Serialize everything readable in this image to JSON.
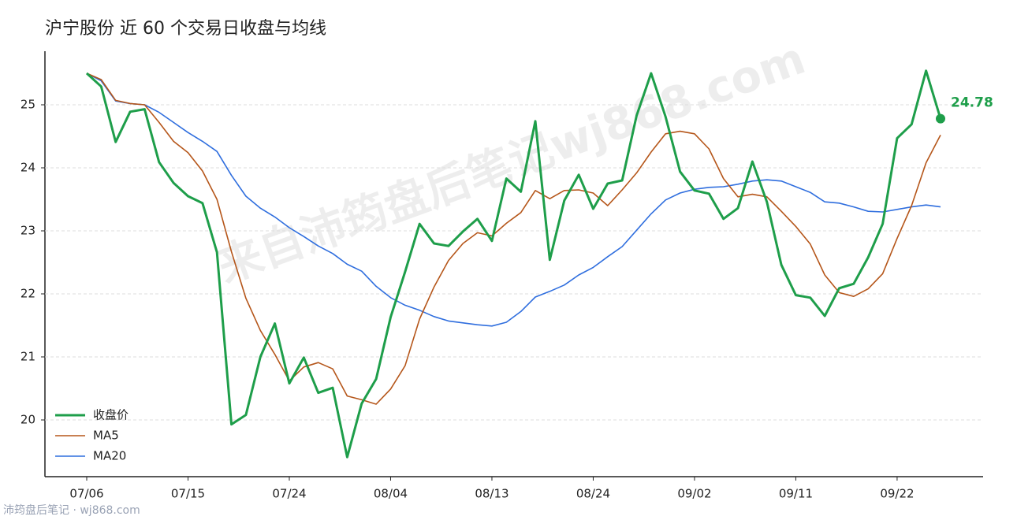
{
  "chart_data": {
    "type": "line",
    "title": "沪宁股份 近 60 个交易日收盘与均线",
    "watermark": "来自沛筠盘后笔记wj868.com",
    "footer": "沛筠盘后笔记 · wj868.com",
    "categories": [
      "07/06",
      null,
      null,
      null,
      null,
      null,
      null,
      "07/15",
      null,
      null,
      null,
      null,
      null,
      null,
      "07/24",
      null,
      null,
      null,
      null,
      null,
      null,
      "08/04",
      null,
      null,
      null,
      null,
      null,
      null,
      "08/13",
      null,
      null,
      null,
      null,
      null,
      null,
      "08/24",
      null,
      null,
      null,
      null,
      null,
      null,
      "09/02",
      null,
      null,
      null,
      null,
      null,
      null,
      "09/11",
      null,
      null,
      null,
      null,
      null,
      null,
      "09/22",
      null,
      null,
      null
    ],
    "series": [
      {
        "name": "收盘价",
        "color": "#1e9e4a",
        "width": 3,
        "values": [
          25.5,
          25.29,
          24.41,
          24.89,
          24.93,
          24.09,
          23.76,
          23.55,
          23.44,
          22.66,
          19.93,
          20.08,
          21.0,
          21.53,
          20.58,
          20.99,
          20.43,
          20.51,
          19.41,
          20.26,
          20.65,
          21.63,
          22.35,
          23.11,
          22.8,
          22.76,
          22.99,
          23.19,
          22.84,
          23.83,
          23.62,
          24.74,
          22.54,
          23.48,
          23.89,
          23.35,
          23.75,
          23.8,
          24.83,
          25.5,
          24.81,
          23.94,
          23.64,
          23.59,
          23.19,
          23.36,
          24.1,
          23.46,
          22.46,
          21.98,
          21.94,
          21.65,
          22.09,
          22.16,
          22.58,
          23.11,
          24.47,
          24.69,
          25.54,
          24.78
        ]
      },
      {
        "name": "MA5",
        "color": "#b5561a",
        "width": 1.6,
        "values": [
          25.5,
          25.4,
          25.07,
          25.02,
          25.0,
          24.72,
          24.42,
          24.24,
          23.95,
          23.5,
          22.67,
          21.93,
          21.42,
          21.04,
          20.62,
          20.84,
          20.91,
          20.81,
          20.38,
          20.32,
          20.25,
          20.49,
          20.86,
          21.6,
          22.11,
          22.53,
          22.8,
          22.97,
          22.92,
          23.12,
          23.29,
          23.64,
          23.51,
          23.64,
          23.65,
          23.6,
          23.4,
          23.65,
          23.92,
          24.25,
          24.54,
          24.58,
          24.54,
          24.3,
          23.83,
          23.54,
          23.58,
          23.54,
          23.31,
          23.07,
          22.79,
          22.3,
          22.02,
          21.96,
          22.08,
          22.32,
          22.88,
          23.4,
          24.08,
          24.52
        ]
      },
      {
        "name": "MA20",
        "color": "#2f6ede",
        "width": 1.6,
        "values": [
          25.5,
          25.38,
          25.06,
          25.02,
          25.0,
          24.88,
          24.72,
          24.56,
          24.42,
          24.26,
          23.88,
          23.55,
          23.36,
          23.22,
          23.05,
          22.91,
          22.76,
          22.64,
          22.47,
          22.36,
          22.12,
          21.94,
          21.82,
          21.74,
          21.64,
          21.57,
          21.54,
          21.51,
          21.49,
          21.55,
          21.72,
          21.95,
          22.04,
          22.14,
          22.3,
          22.42,
          22.59,
          22.75,
          23.01,
          23.27,
          23.49,
          23.6,
          23.66,
          23.69,
          23.7,
          23.74,
          23.79,
          23.81,
          23.79,
          23.7,
          23.61,
          23.46,
          23.44,
          23.38,
          23.31,
          23.3,
          23.34,
          23.38,
          23.41,
          23.38
        ]
      }
    ],
    "ylim": [
      19.1,
      25.85
    ],
    "yticks": [
      20,
      21,
      22,
      23,
      24,
      25
    ],
    "grid": true,
    "legend": "lower-left"
  }
}
